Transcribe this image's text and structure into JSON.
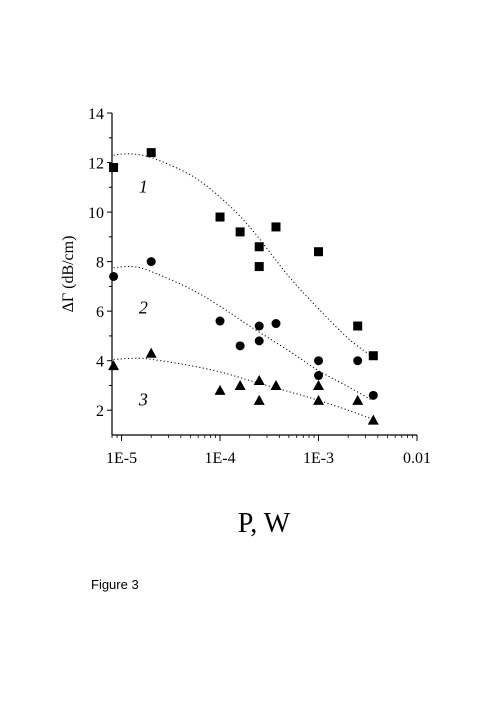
{
  "caption": "Figure 3",
  "chart_data": {
    "type": "scatter",
    "title": "",
    "xlabel": "P, W",
    "ylabel": "ΔΓ (dB/cm)",
    "xscale": "log",
    "xlim": [
      8e-06,
      0.01
    ],
    "ylim": [
      1,
      14
    ],
    "xticks": [
      {
        "value": 1e-05,
        "label": "1E-5"
      },
      {
        "value": 0.0001,
        "label": "1E-4"
      },
      {
        "value": 0.001,
        "label": "1E-3"
      },
      {
        "value": 0.01,
        "label": "0.01"
      }
    ],
    "yticks": [
      2,
      4,
      6,
      8,
      10,
      12,
      14
    ],
    "grid": false,
    "series": [
      {
        "name": "1",
        "marker": "square",
        "points": [
          [
            8.3e-06,
            11.8
          ],
          [
            2e-05,
            12.4
          ],
          [
            0.0001,
            9.8
          ],
          [
            0.00016,
            9.2
          ],
          [
            0.00025,
            8.6
          ],
          [
            0.00025,
            7.8
          ],
          [
            0.00037,
            9.4
          ],
          [
            0.001,
            8.4
          ],
          [
            0.0025,
            5.4
          ],
          [
            0.0036,
            4.2
          ]
        ],
        "fit": [
          [
            8.3e-06,
            12.3
          ],
          [
            1.2e-05,
            12.35
          ],
          [
            2e-05,
            12.2
          ],
          [
            5e-05,
            11.5
          ],
          [
            0.0001,
            10.6
          ],
          [
            0.0002,
            9.4
          ],
          [
            0.0005,
            7.4
          ],
          [
            0.001,
            6.1
          ],
          [
            0.002,
            4.9
          ],
          [
            0.0037,
            4.1
          ]
        ]
      },
      {
        "name": "2",
        "marker": "circle",
        "points": [
          [
            8.3e-06,
            7.4
          ],
          [
            2e-05,
            8.0
          ],
          [
            0.0001,
            5.6
          ],
          [
            0.00016,
            4.6
          ],
          [
            0.00025,
            5.4
          ],
          [
            0.00025,
            4.8
          ],
          [
            0.00037,
            5.5
          ],
          [
            0.001,
            4.0
          ],
          [
            0.001,
            3.4
          ],
          [
            0.0025,
            4.0
          ],
          [
            0.0036,
            2.6
          ]
        ],
        "fit": [
          [
            8.3e-06,
            7.75
          ],
          [
            1.3e-05,
            7.8
          ],
          [
            2e-05,
            7.6
          ],
          [
            5e-05,
            6.9
          ],
          [
            0.0001,
            6.2
          ],
          [
            0.0002,
            5.4
          ],
          [
            0.0005,
            4.4
          ],
          [
            0.001,
            3.6
          ],
          [
            0.002,
            2.95
          ],
          [
            0.0035,
            2.4
          ]
        ]
      },
      {
        "name": "3",
        "marker": "triangle",
        "points": [
          [
            8.3e-06,
            3.8
          ],
          [
            2e-05,
            4.3
          ],
          [
            0.0001,
            2.8
          ],
          [
            0.00016,
            3.0
          ],
          [
            0.00025,
            3.2
          ],
          [
            0.00025,
            2.4
          ],
          [
            0.00037,
            3.0
          ],
          [
            0.001,
            3.0
          ],
          [
            0.001,
            2.4
          ],
          [
            0.0025,
            2.4
          ],
          [
            0.0036,
            1.6
          ]
        ],
        "fit": [
          [
            8.3e-06,
            4.05
          ],
          [
            1.5e-05,
            4.1
          ],
          [
            2.5e-05,
            4.0
          ],
          [
            5e-05,
            3.8
          ],
          [
            0.0001,
            3.55
          ],
          [
            0.0002,
            3.2
          ],
          [
            0.0005,
            2.75
          ],
          [
            0.001,
            2.4
          ],
          [
            0.002,
            2.0
          ],
          [
            0.0035,
            1.65
          ]
        ]
      }
    ]
  }
}
